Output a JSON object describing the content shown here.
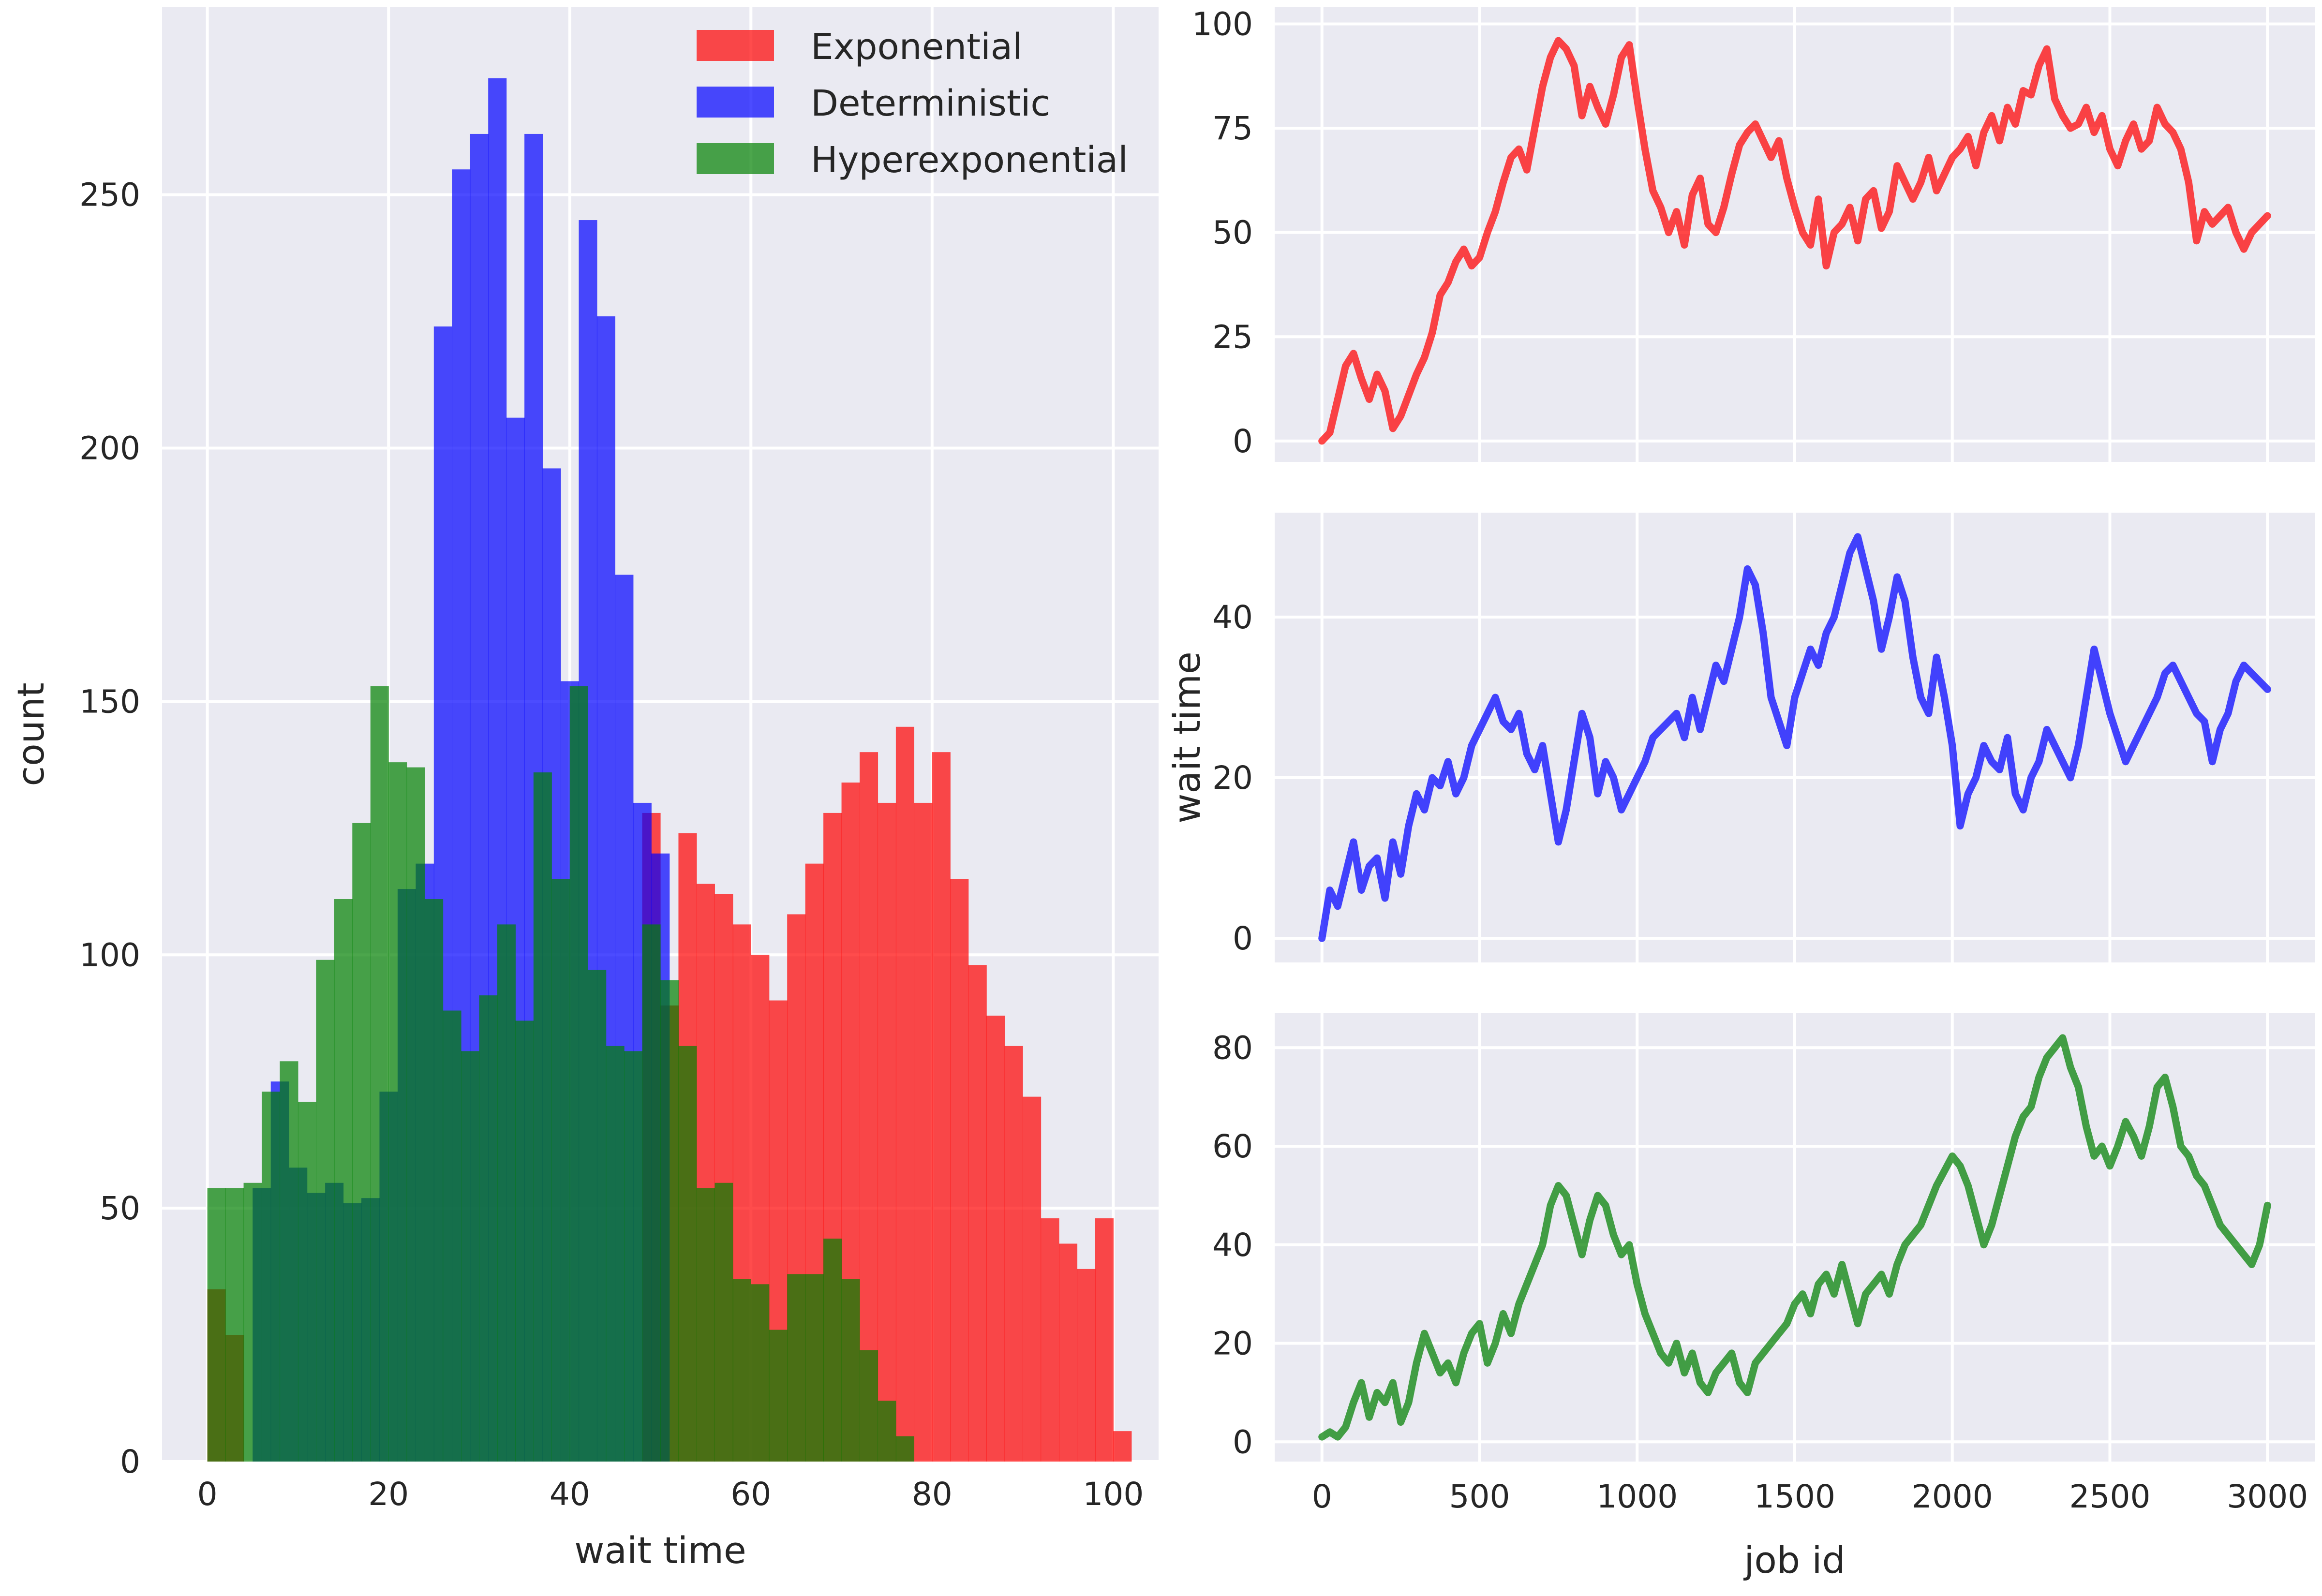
{
  "chart_data": [
    {
      "type": "bar",
      "subtype": "overlaid-histogram",
      "title": "",
      "xlabel": "wait time",
      "ylabel": "count",
      "xlim": [
        -5,
        105
      ],
      "ylim": [
        0,
        287
      ],
      "x_ticks": [
        0,
        20,
        40,
        60,
        80,
        100
      ],
      "y_ticks": [
        0,
        50,
        100,
        150,
        200,
        250
      ],
      "grid": true,
      "legend_position": "top-right",
      "bin_width": 2,
      "bar_alpha": 0.7,
      "series": [
        {
          "name": "Exponential",
          "color": "#ff0000",
          "bin_start": 0,
          "values": [
            34,
            25,
            0,
            0,
            0,
            0,
            0,
            0,
            0,
            0,
            0,
            0,
            0,
            0,
            0,
            0,
            0,
            0,
            0,
            0,
            0,
            0,
            0,
            0,
            128,
            90,
            124,
            114,
            112,
            106,
            100,
            91,
            108,
            118,
            128,
            134,
            140,
            130,
            145,
            130,
            140,
            115,
            98,
            88,
            82,
            72,
            48,
            43,
            38,
            48,
            6,
            0
          ]
        },
        {
          "name": "Deterministic",
          "color": "#0000ff",
          "bin_start": 5,
          "values": [
            54,
            75,
            58,
            53,
            55,
            51,
            52,
            73,
            113,
            118,
            224,
            255,
            262,
            273,
            206,
            262,
            196,
            154,
            245,
            226,
            175,
            130,
            120,
            0,
            0,
            0
          ]
        },
        {
          "name": "Hyperexponential",
          "color": "#008000",
          "bin_start": 0,
          "values": [
            54,
            54,
            55,
            73,
            79,
            71,
            99,
            111,
            126,
            153,
            138,
            137,
            111,
            89,
            81,
            92,
            106,
            87,
            136,
            115,
            153,
            97,
            82,
            81,
            106,
            95,
            82,
            54,
            55,
            36,
            35,
            26,
            37,
            37,
            44,
            36,
            22,
            12,
            5
          ]
        }
      ]
    },
    {
      "type": "line",
      "title": "",
      "xlabel": "",
      "ylabel": "",
      "color": "#ff0000",
      "xlim": [
        -150,
        3150
      ],
      "ylim": [
        -5,
        104
      ],
      "x_ticks": [
        0,
        500,
        1000,
        1500,
        2000,
        2500,
        3000
      ],
      "y_ticks": [
        0,
        25,
        50,
        75,
        100
      ],
      "grid": true,
      "x": [
        0,
        25,
        50,
        75,
        100,
        125,
        150,
        175,
        200,
        225,
        250,
        275,
        300,
        325,
        350,
        375,
        400,
        425,
        450,
        475,
        500,
        525,
        550,
        575,
        600,
        625,
        650,
        675,
        700,
        725,
        750,
        775,
        800,
        825,
        850,
        875,
        900,
        925,
        950,
        975,
        1000,
        1025,
        1050,
        1075,
        1100,
        1125,
        1150,
        1175,
        1200,
        1225,
        1250,
        1275,
        1300,
        1325,
        1350,
        1375,
        1400,
        1425,
        1450,
        1475,
        1500,
        1525,
        1550,
        1575,
        1600,
        1625,
        1650,
        1675,
        1700,
        1725,
        1750,
        1775,
        1800,
        1825,
        1850,
        1875,
        1900,
        1925,
        1950,
        1975,
        2000,
        2025,
        2050,
        2075,
        2100,
        2125,
        2150,
        2175,
        2200,
        2225,
        2250,
        2275,
        2300,
        2325,
        2350,
        2375,
        2400,
        2425,
        2450,
        2475,
        2500,
        2525,
        2550,
        2575,
        2600,
        2625,
        2650,
        2675,
        2700,
        2725,
        2750,
        2775,
        2800,
        2825,
        2850,
        2875,
        2900,
        2925,
        2950,
        2975,
        3000
      ],
      "values": [
        0,
        2,
        10,
        18,
        21,
        15,
        10,
        16,
        12,
        3,
        6,
        11,
        16,
        20,
        26,
        35,
        38,
        43,
        46,
        42,
        44,
        50,
        55,
        62,
        68,
        70,
        65,
        75,
        85,
        92,
        96,
        94,
        90,
        78,
        85,
        80,
        76,
        83,
        92,
        95,
        82,
        70,
        60,
        56,
        50,
        55,
        47,
        59,
        63,
        52,
        50,
        56,
        64,
        71,
        74,
        76,
        72,
        68,
        72,
        63,
        56,
        50,
        47,
        58,
        42,
        50,
        52,
        56,
        48,
        58,
        60,
        51,
        55,
        66,
        62,
        58,
        62,
        68,
        60,
        64,
        68,
        70,
        73,
        66,
        74,
        78,
        72,
        80,
        76,
        84,
        83,
        90,
        94,
        82,
        78,
        75,
        76,
        80,
        74,
        78,
        70,
        66,
        72,
        76,
        70,
        72,
        80,
        76,
        74,
        70,
        62,
        48,
        55,
        52,
        54,
        56,
        50,
        46,
        50,
        52,
        54
      ]
    },
    {
      "type": "line",
      "title": "",
      "xlabel": "",
      "ylabel": "wait time",
      "color": "#0000ff",
      "xlim": [
        -150,
        3150
      ],
      "ylim": [
        -3,
        53
      ],
      "x_ticks": [
        0,
        500,
        1000,
        1500,
        2000,
        2500,
        3000
      ],
      "y_ticks": [
        0,
        20,
        40
      ],
      "grid": true,
      "x": [
        0,
        25,
        50,
        75,
        100,
        125,
        150,
        175,
        200,
        225,
        250,
        275,
        300,
        325,
        350,
        375,
        400,
        425,
        450,
        475,
        500,
        525,
        550,
        575,
        600,
        625,
        650,
        675,
        700,
        725,
        750,
        775,
        800,
        825,
        850,
        875,
        900,
        925,
        950,
        975,
        1000,
        1025,
        1050,
        1075,
        1100,
        1125,
        1150,
        1175,
        1200,
        1225,
        1250,
        1275,
        1300,
        1325,
        1350,
        1375,
        1400,
        1425,
        1450,
        1475,
        1500,
        1525,
        1550,
        1575,
        1600,
        1625,
        1650,
        1675,
        1700,
        1725,
        1750,
        1775,
        1800,
        1825,
        1850,
        1875,
        1900,
        1925,
        1950,
        1975,
        2000,
        2025,
        2050,
        2075,
        2100,
        2125,
        2150,
        2175,
        2200,
        2225,
        2250,
        2275,
        2300,
        2325,
        2350,
        2375,
        2400,
        2425,
        2450,
        2475,
        2500,
        2525,
        2550,
        2575,
        2600,
        2625,
        2650,
        2675,
        2700,
        2725,
        2750,
        2775,
        2800,
        2825,
        2850,
        2875,
        2900,
        2925,
        2950,
        2975,
        3000
      ],
      "values": [
        0,
        6,
        4,
        8,
        12,
        6,
        9,
        10,
        5,
        12,
        8,
        14,
        18,
        16,
        20,
        19,
        22,
        18,
        20,
        24,
        26,
        28,
        30,
        27,
        26,
        28,
        23,
        21,
        24,
        18,
        12,
        16,
        22,
        28,
        25,
        18,
        22,
        20,
        16,
        18,
        20,
        22,
        25,
        26,
        27,
        28,
        25,
        30,
        26,
        30,
        34,
        32,
        36,
        40,
        46,
        44,
        38,
        30,
        27,
        24,
        30,
        33,
        36,
        34,
        38,
        40,
        44,
        48,
        50,
        46,
        42,
        36,
        40,
        45,
        42,
        35,
        30,
        28,
        35,
        30,
        24,
        14,
        18,
        20,
        24,
        22,
        21,
        25,
        18,
        16,
        20,
        22,
        26,
        24,
        22,
        20,
        24,
        30,
        36,
        32,
        28,
        25,
        22,
        24,
        26,
        28,
        30,
        33,
        34,
        32,
        30,
        28,
        27,
        22,
        26,
        28,
        32,
        34,
        33,
        32,
        31
      ]
    },
    {
      "type": "line",
      "title": "",
      "xlabel": "job id",
      "ylabel": "",
      "color": "#008000",
      "xlim": [
        -150,
        3150
      ],
      "ylim": [
        -4,
        87
      ],
      "x_ticks": [
        0,
        500,
        1000,
        1500,
        2000,
        2500,
        3000
      ],
      "y_ticks": [
        0,
        20,
        40,
        60,
        80
      ],
      "grid": true,
      "x": [
        0,
        25,
        50,
        75,
        100,
        125,
        150,
        175,
        200,
        225,
        250,
        275,
        300,
        325,
        350,
        375,
        400,
        425,
        450,
        475,
        500,
        525,
        550,
        575,
        600,
        625,
        650,
        675,
        700,
        725,
        750,
        775,
        800,
        825,
        850,
        875,
        900,
        925,
        950,
        975,
        1000,
        1025,
        1050,
        1075,
        1100,
        1125,
        1150,
        1175,
        1200,
        1225,
        1250,
        1275,
        1300,
        1325,
        1350,
        1375,
        1400,
        1425,
        1450,
        1475,
        1500,
        1525,
        1550,
        1575,
        1600,
        1625,
        1650,
        1675,
        1700,
        1725,
        1750,
        1775,
        1800,
        1825,
        1850,
        1875,
        1900,
        1925,
        1950,
        1975,
        2000,
        2025,
        2050,
        2075,
        2100,
        2125,
        2150,
        2175,
        2200,
        2225,
        2250,
        2275,
        2300,
        2325,
        2350,
        2375,
        2400,
        2425,
        2450,
        2475,
        2500,
        2525,
        2550,
        2575,
        2600,
        2625,
        2650,
        2675,
        2700,
        2725,
        2750,
        2775,
        2800,
        2825,
        2850,
        2875,
        2900,
        2925,
        2950,
        2975,
        3000
      ],
      "values": [
        1,
        2,
        1,
        3,
        8,
        12,
        5,
        10,
        8,
        12,
        4,
        8,
        16,
        22,
        18,
        14,
        16,
        12,
        18,
        22,
        24,
        16,
        20,
        26,
        22,
        28,
        32,
        36,
        40,
        48,
        52,
        50,
        44,
        38,
        45,
        50,
        48,
        42,
        38,
        40,
        32,
        26,
        22,
        18,
        16,
        20,
        14,
        18,
        12,
        10,
        14,
        16,
        18,
        12,
        10,
        16,
        18,
        20,
        22,
        24,
        28,
        30,
        26,
        32,
        34,
        30,
        36,
        30,
        24,
        30,
        32,
        34,
        30,
        36,
        40,
        42,
        44,
        48,
        52,
        55,
        58,
        56,
        52,
        46,
        40,
        44,
        50,
        56,
        62,
        66,
        68,
        74,
        78,
        80,
        82,
        76,
        72,
        64,
        58,
        60,
        56,
        60,
        65,
        62,
        58,
        64,
        72,
        74,
        68,
        60,
        58,
        54,
        52,
        48,
        44,
        42,
        40,
        38,
        36,
        40,
        48
      ]
    }
  ],
  "colors": {
    "axes_background": "#eaeaf2",
    "grid": "#ffffff",
    "overlap_red_blue": "#8b0000",
    "overlap_green_red": "#808000",
    "overlap_green_blue": "#006060",
    "text": "#262626"
  }
}
